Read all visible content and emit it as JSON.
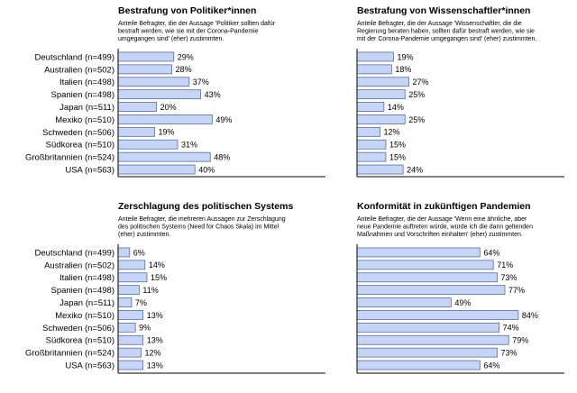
{
  "categories": [
    "Deutschland (n=499)",
    "Australien (n=502)",
    "Italien (n=498)",
    "Spanien (n=498)",
    "Japan (n=511)",
    "Mexiko (n=510)",
    "Schweden (n=506)",
    "Südkorea (n=510)",
    "Großbritannien (n=524)",
    "USA (n=563)"
  ],
  "colors": {
    "bar_fill": "#c6d4f5",
    "bar_stroke": "#5a6e9c",
    "axis": "#000000"
  },
  "chart_data": [
    {
      "type": "bar",
      "title": "Bestrafung von Politiker*innen",
      "subtitle_lines": [
        "Anteile Befragter, die der Aussage 'Politiker sollten dafür",
        "bestraft werden, wie sie mit der Corona-Pandemie",
        "umgegangen sind' (eher) zustimmten."
      ],
      "categories": [
        "Deutschland (n=499)",
        "Australien (n=502)",
        "Italien (n=498)",
        "Spanien (n=498)",
        "Japan (n=511)",
        "Mexiko (n=510)",
        "Schweden (n=506)",
        "Südkorea (n=510)",
        "Großbritannien (n=524)",
        "USA (n=563)"
      ],
      "values": [
        29,
        28,
        37,
        43,
        20,
        49,
        19,
        31,
        48,
        40
      ],
      "labels": [
        "29%",
        "28%",
        "37%",
        "43%",
        "20%",
        "49%",
        "19%",
        "31%",
        "48%",
        "40%"
      ],
      "unit": "%",
      "xlim": [
        0,
        100
      ]
    },
    {
      "type": "bar",
      "title": "Bestrafung von Wissenschaftler*innen",
      "subtitle_lines": [
        "Anteile Befragter, die der Aussage 'Wissenschaftler, die die",
        "Regierung beraten haben, sollten dafür bestraft werden, wie sie",
        "mit der Corona-Pandemie umgegangen sind' (eher) zustimmten."
      ],
      "categories": [
        "Deutschland (n=499)",
        "Australien (n=502)",
        "Italien (n=498)",
        "Spanien (n=498)",
        "Japan (n=511)",
        "Mexiko (n=510)",
        "Schweden (n=506)",
        "Südkorea (n=510)",
        "Großbritannien (n=524)",
        "USA (n=563)"
      ],
      "values": [
        19,
        18,
        27,
        25,
        14,
        25,
        12,
        15,
        15,
        24
      ],
      "labels": [
        "19%",
        "18%",
        "27%",
        "25%",
        "14%",
        "25%",
        "12%",
        "15%",
        "15%",
        "24%"
      ],
      "unit": "%",
      "xlim": [
        0,
        100
      ]
    },
    {
      "type": "bar",
      "title": "Zerschlagung des politischen Systems",
      "subtitle_lines": [
        "Anteile Befragter, die mehreren Aussagen zur Zerschlagung",
        "des politischen Systems (Need for Chaos Skala) im Mittel",
        "(eher) zustimmten."
      ],
      "categories": [
        "Deutschland (n=499)",
        "Australien (n=502)",
        "Italien (n=498)",
        "Spanien (n=498)",
        "Japan (n=511)",
        "Mexiko (n=510)",
        "Schweden (n=506)",
        "Südkorea (n=510)",
        "Großbritannien (n=524)",
        "USA (n=563)"
      ],
      "values": [
        6,
        14,
        15,
        11,
        7,
        13,
        9,
        13,
        12,
        13
      ],
      "labels": [
        "6%",
        "14%",
        "15%",
        "11%",
        "7%",
        "13%",
        "9%",
        "13%",
        "12%",
        "13%"
      ],
      "unit": "%",
      "xlim": [
        0,
        100
      ]
    },
    {
      "type": "bar",
      "title": "Konformität in zukünftigen Pandemien",
      "subtitle_lines": [
        "Anteile Befragter, die der Aussage 'Wenn eine ähnliche, aber",
        "neue Pandemie auftreten würde, würde ich die dann geltenden",
        "Maßnahmen und Vorschriften einhalten' (eher) zustimmten."
      ],
      "categories": [
        "Deutschland (n=499)",
        "Australien (n=502)",
        "Italien (n=498)",
        "Spanien (n=498)",
        "Japan (n=511)",
        "Mexiko (n=510)",
        "Schweden (n=506)",
        "Südkorea (n=510)",
        "Großbritannien (n=524)",
        "USA (n=563)"
      ],
      "values": [
        64,
        71,
        73,
        77,
        49,
        84,
        74,
        79,
        73,
        64
      ],
      "labels": [
        "64%",
        "71%",
        "73%",
        "77%",
        "49%",
        "84%",
        "74%",
        "79%",
        "73%",
        "64%"
      ],
      "unit": "%",
      "xlim": [
        0,
        100
      ]
    }
  ]
}
